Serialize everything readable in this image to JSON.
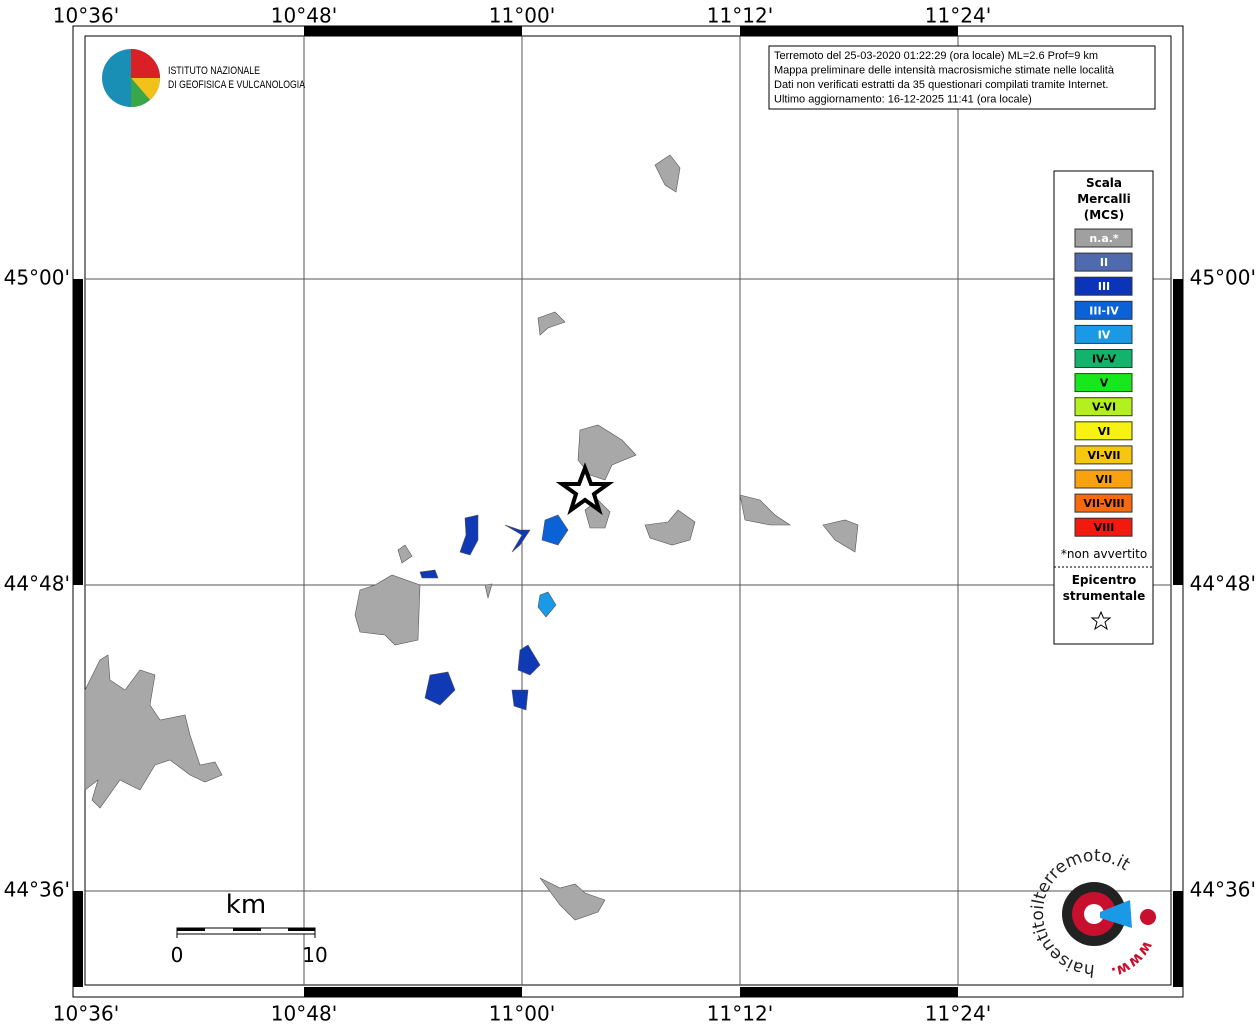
{
  "map": {
    "lon_labels": [
      "10°36'",
      "10°48'",
      "11°00'",
      "11°12'",
      "11°24'"
    ],
    "lat_labels": [
      "45°00'",
      "44°48'",
      "44°36'"
    ],
    "info": [
      "Terremoto del 25-03-2020 01:22:29 (ora locale) ML=2.6 Prof=9 km",
      "Mappa preliminare delle intensità macrosismiche stimate nelle località",
      "Dati non verificati estratti da 35 questionari compilati tramite Internet.",
      "Ultimo aggiornamento: 16-12-2025 11:41 (ora locale)"
    ],
    "logo_ingv": [
      "ISTITUTO NAZIONALE",
      "DI GEOFISICA E VULCANOLOGIA"
    ],
    "legend": {
      "title": [
        "Scala",
        "Mercalli",
        "(MCS)"
      ],
      "items": [
        {
          "label": "n.a.*",
          "color": "#a0a0a0",
          "text_color": "#ffffff"
        },
        {
          "label": "II",
          "color": "#4f6aae",
          "text_color": "#ffffff"
        },
        {
          "label": "III",
          "color": "#0a35b8",
          "text_color": "#ffffff"
        },
        {
          "label": "III-IV",
          "color": "#0a62d6",
          "text_color": "#ffffff"
        },
        {
          "label": "IV",
          "color": "#1a9ae6",
          "text_color": "#ffffff"
        },
        {
          "label": "IV-V",
          "color": "#12b36a",
          "text_color": "#000000"
        },
        {
          "label": "V",
          "color": "#17e81b",
          "text_color": "#000000"
        },
        {
          "label": "V-VI",
          "color": "#b4f01e",
          "text_color": "#000000"
        },
        {
          "label": "VI",
          "color": "#f7f20e",
          "text_color": "#000000"
        },
        {
          "label": "VI-VII",
          "color": "#f7c60e",
          "text_color": "#000000"
        },
        {
          "label": "VII",
          "color": "#f7a20e",
          "text_color": "#000000"
        },
        {
          "label": "VII-VIII",
          "color": "#f76a0e",
          "text_color": "#000000"
        },
        {
          "label": "VIII",
          "color": "#f21a0e",
          "text_color": "#000000"
        }
      ],
      "note": "*non avvertito",
      "epicenter": [
        "Epicentro",
        "strumentale"
      ]
    },
    "scale_bar": {
      "unit": "km",
      "labels": [
        "0",
        "10"
      ]
    },
    "logo_hsit": [
      "haisentitoilterremoto.it",
      "www."
    ]
  }
}
